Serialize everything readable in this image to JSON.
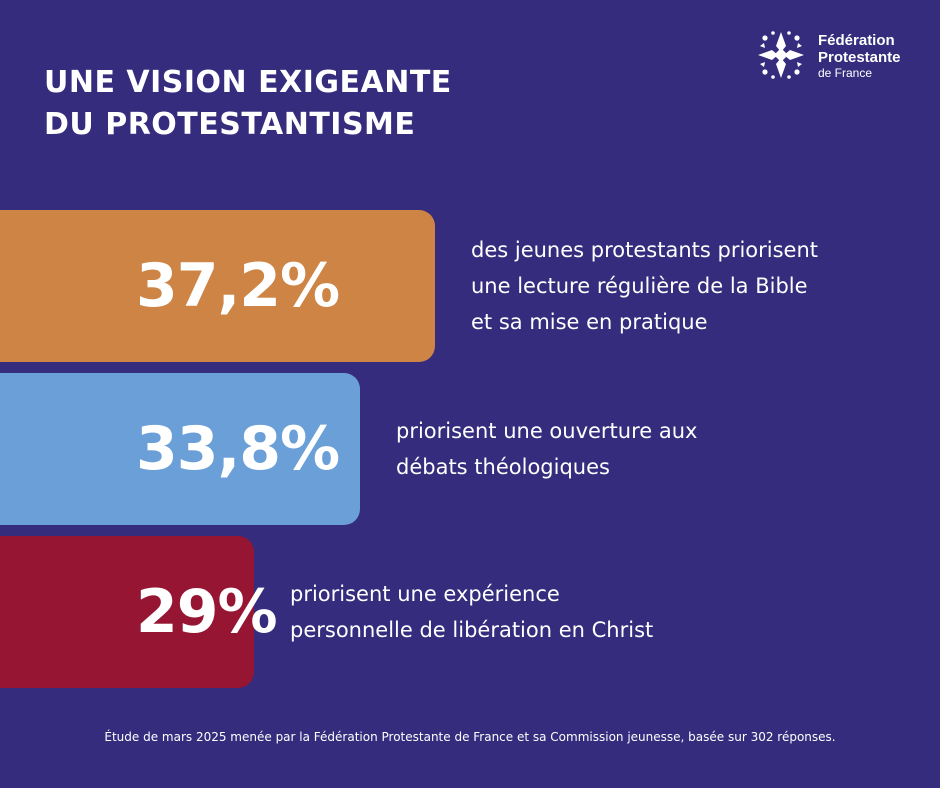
{
  "header": {
    "title_lines": [
      "UNE VISION EXIGEANTE",
      "DU PROTESTANTISME"
    ]
  },
  "logo": {
    "icon": "cross-star-logo-icon",
    "line1": "Fédération",
    "line2": "Protestante",
    "line3": "de France"
  },
  "chart_data": {
    "type": "bar",
    "orientation": "horizontal",
    "title": "UNE VISION EXIGEANTE DU PROTESTANTISME",
    "categories": [
      "des jeunes protestants priorisent une lecture régulière de la Bible et sa mise en pratique",
      "priorisent une ouverture aux débats théologiques",
      "priorisent une expérience personnelle de libération en Christ"
    ],
    "values": [
      37.2,
      33.8,
      29
    ],
    "value_labels": [
      "37,2%",
      "33,8%",
      "29%"
    ],
    "description_lines": [
      [
        "des jeunes protestants priorisent",
        "une lecture régulière de la Bible",
        "et sa mise en pratique"
      ],
      [
        "priorisent une ouverture aux",
        "débats théologiques"
      ],
      [
        "priorisent une expérience",
        "personnelle de libération en Christ"
      ]
    ],
    "colors": [
      "#cd8444",
      "#6a9fd8",
      "#951533"
    ],
    "unit": "%",
    "xlim": [
      0,
      37.2
    ],
    "grid": false,
    "legend": "none"
  },
  "footnote": "Étude de mars 2025 menée par la Fédération Protestante de France et sa Commission jeunesse, basée sur 302 réponses.",
  "colors": {
    "background": "#352c7d",
    "text": "#ffffff"
  }
}
